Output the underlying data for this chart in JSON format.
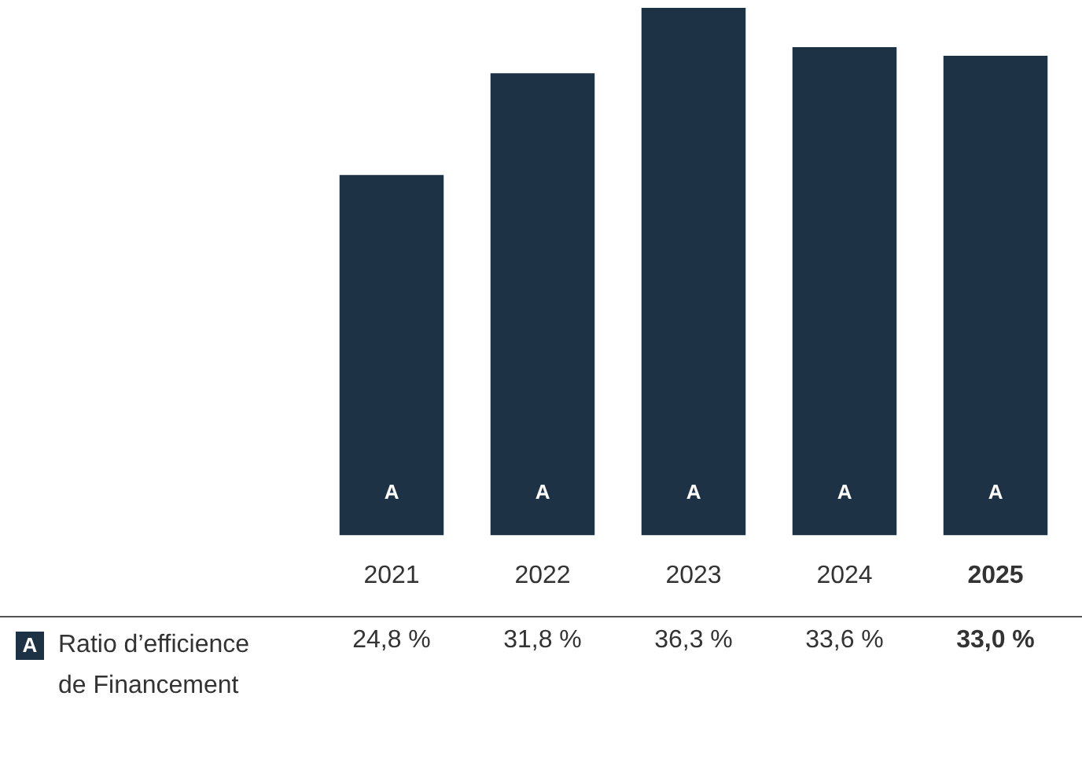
{
  "chart_data": {
    "type": "bar",
    "categories": [
      "2021",
      "2022",
      "2023",
      "2024",
      "2025"
    ],
    "series": [
      {
        "name": "Ratio d’efficience de Financement",
        "color": "#1e3246",
        "values": [
          24.8,
          31.8,
          36.3,
          33.6,
          33.0
        ],
        "value_labels": [
          "24,8 %",
          "31,8 %",
          "36,3 %",
          "33,6 %",
          "33,0 %"
        ]
      }
    ],
    "legend_title": "A",
    "legend": "bottom left",
    "annotations": [
      "A",
      "A",
      "A",
      "A",
      "A"
    ],
    "grid": false
  }
}
